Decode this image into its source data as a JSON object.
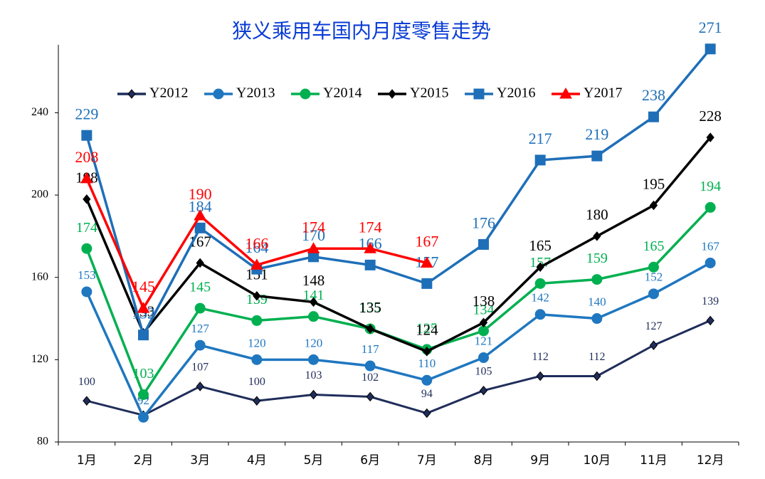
{
  "chart_data": {
    "type": "line",
    "title": "狭义乘用车国内月度零售走势",
    "categories": [
      "1月",
      "2月",
      "3月",
      "4月",
      "5月",
      "6月",
      "7月",
      "8月",
      "9月",
      "10月",
      "11月",
      "12月"
    ],
    "series": [
      {
        "name": "Y2012",
        "color": "#1f2d5a",
        "marker": "diamond",
        "values": [
          100,
          93,
          107,
          100,
          103,
          102,
          94,
          105,
          112,
          112,
          127,
          139
        ]
      },
      {
        "name": "Y2013",
        "color": "#1f77c0",
        "marker": "circle",
        "values": [
          153,
          92,
          127,
          120,
          120,
          117,
          110,
          121,
          142,
          140,
          152,
          167
        ]
      },
      {
        "name": "Y2014",
        "color": "#00b050",
        "marker": "circle",
        "values": [
          174,
          103,
          145,
          139,
          141,
          135,
          125,
          134,
          157,
          159,
          165,
          194
        ]
      },
      {
        "name": "Y2015",
        "color": "#000000",
        "marker": "diamond",
        "values": [
          198,
          133,
          167,
          151,
          148,
          135,
          124,
          138,
          165,
          180,
          195,
          228
        ]
      },
      {
        "name": "Y2016",
        "color": "#1e6fb8",
        "marker": "square",
        "values": [
          229,
          132,
          184,
          164,
          170,
          166,
          157,
          176,
          217,
          219,
          238,
          271
        ]
      },
      {
        "name": "Y2017",
        "color": "#ff0000",
        "marker": "triangle",
        "values": [
          208,
          145,
          190,
          166,
          174,
          174,
          167,
          null,
          null,
          null,
          null,
          null
        ]
      }
    ],
    "ylim": [
      80,
      273
    ],
    "yticks": [
      80,
      120,
      160,
      200,
      240
    ],
    "legend": "top"
  }
}
